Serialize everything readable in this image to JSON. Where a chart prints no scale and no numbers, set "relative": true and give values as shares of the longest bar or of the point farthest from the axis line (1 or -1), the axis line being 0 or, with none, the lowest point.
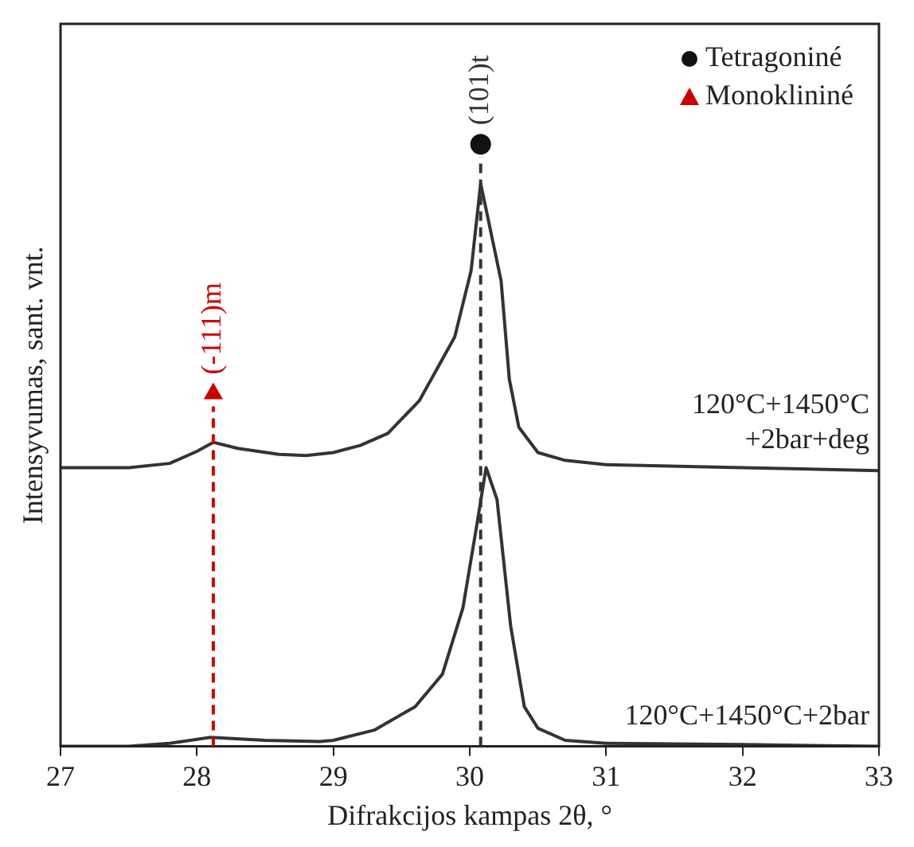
{
  "chart_data": {
    "type": "line",
    "relative": true,
    "xlabel": "Difrakcijos kampas 2θ, °",
    "ylabel": "Intensyvumas, sant. vnt.",
    "xlim": [
      27,
      33
    ],
    "xticks": [
      27,
      28,
      29,
      30,
      31,
      32,
      33
    ],
    "tick_labels": "x",
    "grid": false,
    "legend": "top right",
    "line_style": "solid",
    "series": [
      {
        "name": "120°C+1450°C +2bar+deg",
        "type": "line",
        "color": "#333333",
        "x": [
          27,
          27.5,
          27.8,
          28,
          28.12,
          28.3,
          28.6,
          28.8,
          29,
          29.2,
          29.4,
          29.63,
          29.89,
          30.01,
          30.08,
          30.23,
          30.29,
          30.36,
          30.5,
          30.7,
          31,
          32,
          33
        ],
        "values": [
          0.463,
          0.463,
          0.47,
          0.49,
          0.505,
          0.495,
          0.485,
          0.483,
          0.488,
          0.5,
          0.52,
          0.574,
          0.68,
          0.79,
          0.935,
          0.773,
          0.61,
          0.53,
          0.488,
          0.475,
          0.468,
          0.463,
          0.458
        ]
      },
      {
        "name": "120°C+1450°C+2bar",
        "type": "line",
        "color": "#333333",
        "x": [
          27,
          27.5,
          27.8,
          28.1,
          28.5,
          28.9,
          29,
          29.3,
          29.6,
          29.8,
          29.95,
          30.05,
          30.12,
          30.2,
          30.3,
          30.4,
          30.5,
          30.7,
          31,
          32,
          33
        ],
        "values": [
          0,
          0,
          0.005,
          0.015,
          0.01,
          0.008,
          0.01,
          0.027,
          0.066,
          0.12,
          0.23,
          0.365,
          0.463,
          0.41,
          0.2,
          0.066,
          0.03,
          0.01,
          0.005,
          0.003,
          0
        ]
      },
      {
        "name": "Tetragoniné",
        "type": "scatter",
        "marker": "circle",
        "color": "#111111",
        "x": [
          30.08
        ],
        "values": [
          1
        ]
      },
      {
        "name": "Monoklininé",
        "type": "scatter",
        "marker": "triangle",
        "color": "#cc0000",
        "x": [
          28.12
        ],
        "values": [
          0.586
        ]
      }
    ],
    "ref_lines": [
      {
        "axis": "x",
        "value": 30.08,
        "label": "(101)t",
        "color": "#333333",
        "line_style": "dashed"
      },
      {
        "axis": "x",
        "value": 28.12,
        "label": "(-111)m",
        "color": "#cc0000",
        "line_style": "dashed"
      }
    ]
  }
}
